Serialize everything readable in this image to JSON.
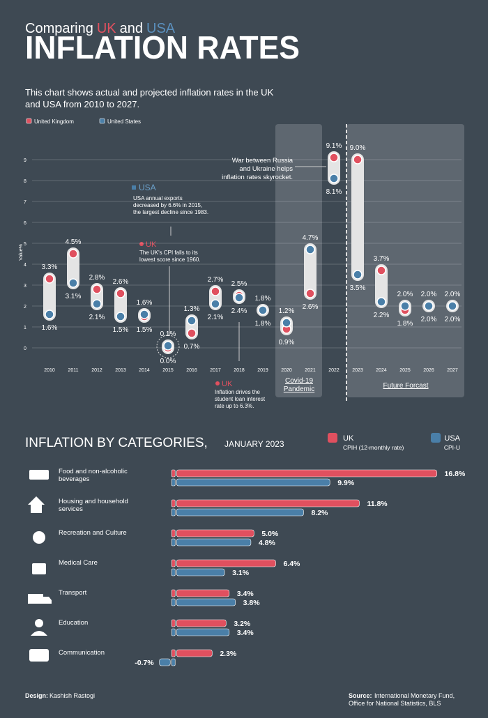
{
  "header": {
    "title_parts": [
      "Comparing",
      "UK",
      "and",
      "USA"
    ],
    "title": "INFLATION RATES",
    "subtitle_lines": [
      "This chart shows actual and projected inflation rates in the UK",
      "and USA from 2010 to 2027."
    ]
  },
  "chart_data": [
    {
      "type": "dumbbell",
      "ylabel": "Value%",
      "legend": "top-left",
      "grid": true,
      "categories": [
        "2010",
        "2011",
        "2012",
        "2013",
        "2014",
        "2015",
        "2016",
        "2017",
        "2018",
        "2019",
        "2020",
        "2021",
        "2022",
        "2023",
        "2024",
        "2025",
        "2026",
        "2027"
      ],
      "series": [
        {
          "name": "United Kingdom",
          "color": "#e0505f",
          "values": [
            3.3,
            4.5,
            2.8,
            2.6,
            1.5,
            0.0,
            0.7,
            2.7,
            2.5,
            1.8,
            0.9,
            2.6,
            9.1,
            9.0,
            3.7,
            1.8,
            2.0,
            2.0
          ],
          "value_labels": [
            "3.3%",
            "4.5%",
            "2.8%",
            "2.6%",
            "1.5%",
            "0.0%",
            "0.7%",
            "2.7%",
            "2.5%",
            "1.8%",
            "0.9%",
            "2.6%",
            "9.1%",
            "9.0%",
            "3.7%",
            "1.8%",
            "2.0%",
            "2.0%"
          ]
        },
        {
          "name": "United States",
          "color": "#4a7fa8",
          "values": [
            1.6,
            3.1,
            2.1,
            1.5,
            1.6,
            0.1,
            1.3,
            2.1,
            2.4,
            1.8,
            1.2,
            4.7,
            8.1,
            3.5,
            2.2,
            2.0,
            2.0,
            2.0
          ],
          "value_labels": [
            "1.6%",
            "3.1%",
            "2.1%",
            "1.5%",
            "1.6%",
            "0.1%",
            "1.3%",
            "2.1%",
            "2.4%",
            "1.8%",
            "1.2%",
            "4.7%",
            "8.1%",
            "3.5%",
            "2.2%",
            "2.0%",
            "2.0%",
            "2.0%"
          ]
        }
      ],
      "ylim": [
        -1,
        10
      ],
      "yticks": [
        0,
        1,
        2,
        3,
        4,
        5,
        6,
        7,
        8,
        9
      ],
      "regions": [
        {
          "lines": [
            "Covid-19",
            "Pandemic"
          ]
        },
        {
          "lines": [
            "Future Forcast"
          ]
        }
      ],
      "annotations": [
        {
          "heading": "USA",
          "lines": [
            "USA annual exports",
            "decreased by 6.6% in 2015,",
            "the largest decline since 1983."
          ]
        },
        {
          "heading": "UK",
          "lines": [
            "The UK's CPI falls to its",
            "lowest score since 1960."
          ]
        },
        {
          "lines": [
            "War between Russia",
            "and Ukraine helps",
            "inflation rates skyrocket."
          ]
        },
        {
          "heading": "UK",
          "lines": [
            "Inflation drives the",
            "student loan interest",
            "rate up to 6.3%."
          ]
        }
      ]
    },
    {
      "type": "bar",
      "orientation": "horizontal",
      "title": "INFLATION BY CATEGORIES,",
      "subtitle": "JANUARY 2023",
      "categories": [
        "Food and non-alcoholic beverages",
        "Housing and household services",
        "Recreation and Culture",
        "Medical Care",
        "Transport",
        "Education",
        "Communication"
      ],
      "series": [
        {
          "name": "UK",
          "description": "CPIH (12-monthly rate)",
          "color": "#e0505f",
          "values": [
            16.8,
            11.8,
            5.0,
            6.4,
            3.4,
            3.2,
            2.3
          ],
          "value_labels": [
            "16.8%",
            "11.8%",
            "5.0%",
            "6.4%",
            "3.4%",
            "3.2%",
            "2.3%"
          ]
        },
        {
          "name": "USA",
          "description": "CPI-U",
          "color": "#4a7fa8",
          "values": [
            9.9,
            8.2,
            4.8,
            3.1,
            3.8,
            3.4,
            -0.7
          ],
          "value_labels": [
            "9.9%",
            "8.2%",
            "4.8%",
            "3.1%",
            "3.8%",
            "3.4%",
            "-0.7%"
          ]
        }
      ],
      "xlim": [
        -1,
        17
      ]
    }
  ],
  "footer": {
    "design_label": "Design:",
    "designer": "Kashish Rastogi",
    "source_label": "Source:",
    "source_lines": [
      "International Monetary Fund,",
      "Office for National Statistics, BLS"
    ]
  }
}
